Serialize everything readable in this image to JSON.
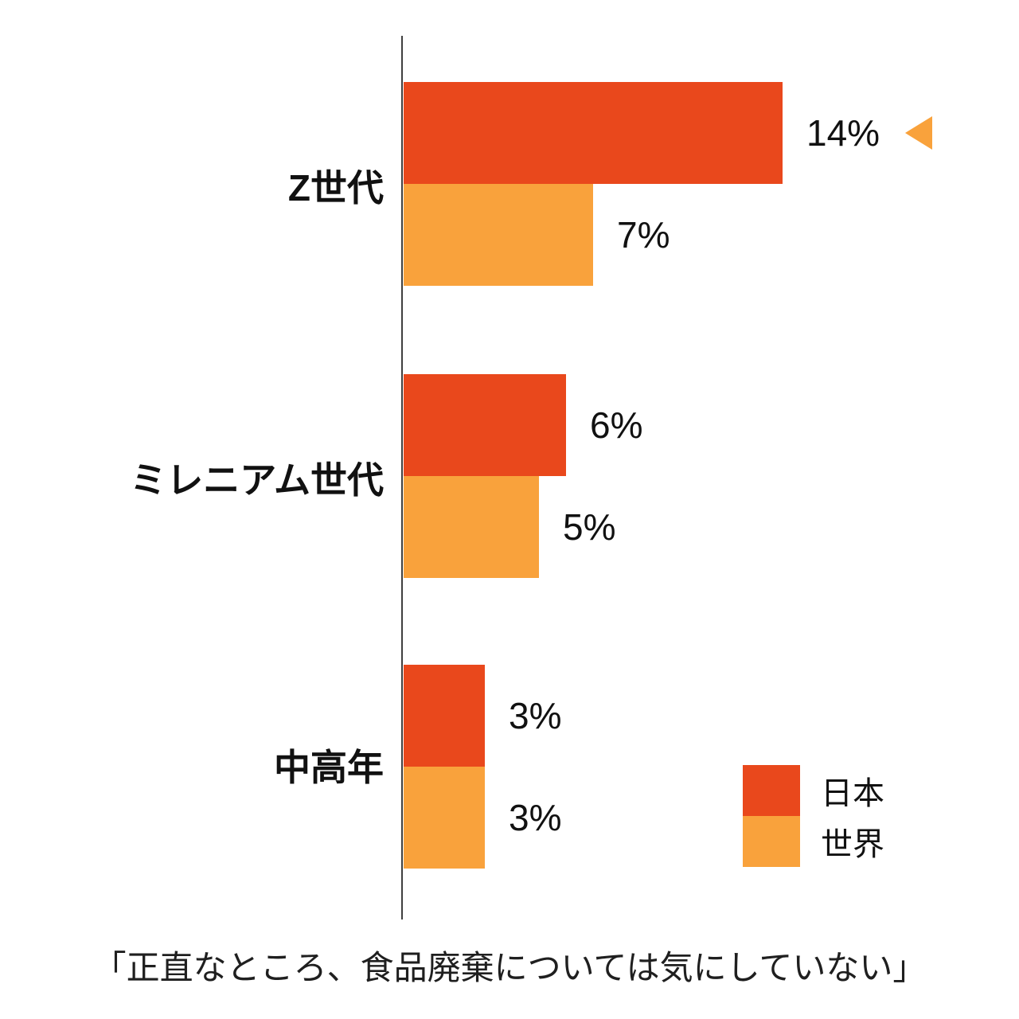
{
  "chart_data": {
    "type": "bar",
    "orientation": "horizontal",
    "title": "",
    "caption": "「正直なところ、食品廃棄については気にしていない」",
    "categories": [
      "Z世代",
      "ミレニアム世代",
      "中高年"
    ],
    "series": [
      {
        "name": "日本",
        "color": "#E9481C",
        "values": [
          14,
          6,
          3
        ]
      },
      {
        "name": "世界",
        "color": "#F9A23C",
        "values": [
          7,
          5,
          3
        ]
      }
    ],
    "value_labels": {
      "japan": [
        "14%",
        "6%",
        "3%"
      ],
      "world": [
        "7%",
        "5%",
        "3%"
      ]
    },
    "xlim": [
      0,
      14
    ],
    "grid": false,
    "legend": {
      "position": "bottom-right"
    },
    "highlight": {
      "category": "Z世代",
      "series": "日本",
      "marker": "left-triangle"
    }
  },
  "colors": {
    "japan_bar": "#E9481C",
    "world_bar": "#F9A23C",
    "marker": "#F9A23C",
    "axis": "#404040",
    "text": "#111111"
  }
}
